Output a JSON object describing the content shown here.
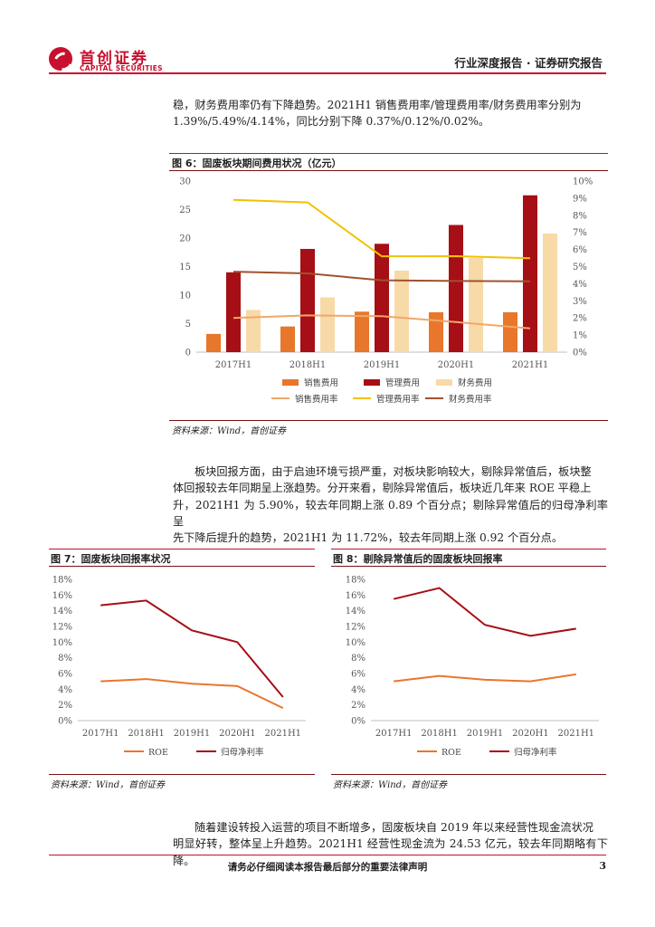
{
  "header": {
    "logo_cn": "首创证券",
    "logo_en": "CAPITAL SECURITIES",
    "report_type": "行业深度报告 · 证券研究报告",
    "logo_color": "#c8102e"
  },
  "paragraphs": {
    "p1_line1": "稳，财务费用率仍有下降趋势。2021H1 销售费用率/管理费用率/财务费用率分别为",
    "p1_line2": "1.39%/5.49%/4.14%，同比分别下降 0.37%/0.12%/0.02%。",
    "p2_line1": "板块回报方面，由于启迪环境亏损严重，对板块影响较大，剔除异常值后，板块整",
    "p2_line2": "体回报较去年同期呈上涨趋势。分开来看，剔除异常值后，板块近几年来 ROE 平稳上",
    "p2_line3": "升，2021H1 为 5.90%，较去年同期上涨 0.89 个百分点；剔除异常值后的归母净利率呈",
    "p2_line4": "先下降后提升的趋势，2021H1 为 11.72%，较去年同期上涨 0.92 个百分点。",
    "p3_line1": "随着建设转投入运营的项目不断增多，固废板块自 2019 年以来经营性现金流状况",
    "p3_line2": "明显好转，整体呈上升趋势。2021H1 经营性现金流为 24.53 亿元，较去年同期略有下降。"
  },
  "figures": {
    "fig6_title": "图 6：固废板块期间费用状况（亿元）",
    "fig6_source": "资料来源：Wind，首创证券",
    "fig7_title": "图 7：固废板块回报率状况",
    "fig7_source": "资料来源：Wind，首创证券",
    "fig8_title": "图 8：剔除异常值后的固废板块回报率",
    "fig8_source": "资料来源：Wind，首创证券"
  },
  "footer": {
    "note": "请务必仔细阅读本报告最后部分的重要法律声明",
    "page": "3"
  },
  "chart_data": [
    {
      "id": "fig6",
      "type": "bar",
      "categories": [
        "2017H1",
        "2018H1",
        "2019H1",
        "2020H1",
        "2021H1"
      ],
      "ylim": [
        0,
        30
      ],
      "yticks": [
        "0",
        "5",
        "10",
        "15",
        "20",
        "25",
        "30"
      ],
      "ylim_right": [
        0,
        10
      ],
      "yticks_right": [
        "0%",
        "1%",
        "2%",
        "3%",
        "4%",
        "5%",
        "6%",
        "7%",
        "8%",
        "9%",
        "10%"
      ],
      "bar_series": [
        {
          "name": "销售费用",
          "color": "#e8762b",
          "values": [
            3.2,
            4.5,
            7.1,
            7.0,
            7.0
          ]
        },
        {
          "name": "管理费用",
          "color": "#a50f15",
          "values": [
            14.0,
            18.1,
            19.0,
            22.3,
            27.5
          ]
        },
        {
          "name": "财务费用",
          "color": "#f8d9a8",
          "values": [
            7.4,
            9.6,
            14.3,
            16.5,
            20.8
          ]
        }
      ],
      "line_series": [
        {
          "name": "销售费用率",
          "color": "#f0a868",
          "values": [
            2.0,
            2.15,
            2.1,
            1.76,
            1.39
          ]
        },
        {
          "name": "管理费用率",
          "color": "#f2c200",
          "values": [
            8.9,
            8.75,
            5.6,
            5.61,
            5.49
          ]
        },
        {
          "name": "财务费用率",
          "color": "#a0522d",
          "values": [
            4.7,
            4.6,
            4.2,
            4.16,
            4.14
          ]
        }
      ]
    },
    {
      "id": "fig7",
      "type": "line",
      "categories": [
        "2017H1",
        "2018H1",
        "2019H1",
        "2020H1",
        "2021H1"
      ],
      "ylim": [
        0,
        18
      ],
      "yticks": [
        "0%",
        "2%",
        "4%",
        "6%",
        "8%",
        "10%",
        "12%",
        "14%",
        "16%",
        "18%"
      ],
      "series": [
        {
          "name": "ROE",
          "color": "#e8762b",
          "values": [
            5.0,
            5.3,
            4.7,
            4.4,
            1.6
          ]
        },
        {
          "name": "归母净利率",
          "color": "#a50f15",
          "values": [
            14.7,
            15.3,
            11.5,
            10.0,
            3.0
          ]
        }
      ]
    },
    {
      "id": "fig8",
      "type": "line",
      "categories": [
        "2017H1",
        "2018H1",
        "2019H1",
        "2020H1",
        "2021H1"
      ],
      "ylim": [
        0,
        18
      ],
      "yticks": [
        "0%",
        "2%",
        "4%",
        "6%",
        "8%",
        "10%",
        "12%",
        "14%",
        "16%",
        "18%"
      ],
      "series": [
        {
          "name": "ROE",
          "color": "#e8762b",
          "values": [
            5.0,
            5.7,
            5.2,
            5.01,
            5.9
          ]
        },
        {
          "name": "归母净利率",
          "color": "#a50f15",
          "values": [
            15.5,
            16.9,
            12.2,
            10.8,
            11.72
          ]
        }
      ]
    }
  ]
}
